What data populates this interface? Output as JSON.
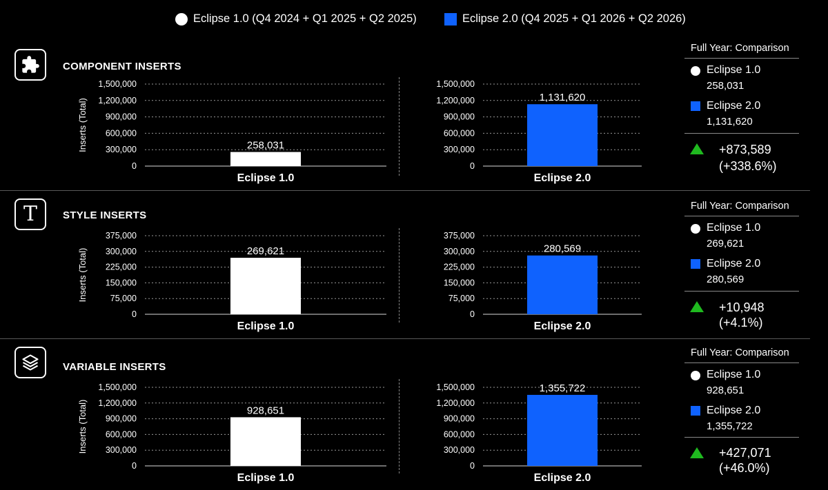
{
  "legend": [
    {
      "label": "Eclipse 1.0 (Q4 2024 + Q1 2025 + Q2 2025)",
      "color": "#ffffff",
      "marker": "circle"
    },
    {
      "label": "Eclipse 2.0 (Q4 2025 + Q1 2026 + Q2 2026)",
      "color": "#0f62fe",
      "marker": "square"
    }
  ],
  "colors": {
    "eclipse1": "#ffffff",
    "eclipse2": "#0f62fe",
    "increase": "#1fb91f"
  },
  "ylabel": "Inserts (Total)",
  "sections": [
    {
      "title": "COMPONENT INSERTS",
      "icon": "puzzle-icon",
      "comparison": {
        "title": "Full Year: Comparison",
        "e1_label": "Eclipse 1.0",
        "e1_value": "258,031",
        "e2_label": "Eclipse 2.0",
        "e2_value": "1,131,620",
        "delta": "+873,589",
        "pct": "(+338.6%)"
      }
    },
    {
      "title": "STYLE INSERTS",
      "icon": "text-t-icon",
      "icon_glyph": "T",
      "comparison": {
        "title": "Full Year: Comparison",
        "e1_label": "Eclipse 1.0",
        "e1_value": "269,621",
        "e2_label": "Eclipse 2.0",
        "e2_value": "280,569",
        "delta": "+10,948",
        "pct": "(+4.1%)"
      }
    },
    {
      "title": "VARIABLE INSERTS",
      "icon": "layers-icon",
      "comparison": {
        "title": "Full Year: Comparison",
        "e1_label": "Eclipse 1.0",
        "e1_value": "928,651",
        "e2_label": "Eclipse 2.0",
        "e2_value": "1,355,722",
        "delta": "+427,071",
        "pct": "(+46.0%)"
      }
    }
  ],
  "chart_data": [
    {
      "type": "bar",
      "categories": [
        "Eclipse 1.0"
      ],
      "values": [
        258031
      ],
      "value_labels": [
        "258,031"
      ],
      "ylabel": "Inserts (Total)",
      "ylim": [
        0,
        1500000
      ],
      "yticks": [
        0,
        300000,
        600000,
        900000,
        1200000,
        1500000
      ],
      "ytick_labels": [
        "0",
        "300,000",
        "600,000",
        "900,000",
        "1,200,000",
        "1,500,000"
      ],
      "color": "#ffffff",
      "grid": true
    },
    {
      "type": "bar",
      "categories": [
        "Eclipse 2.0"
      ],
      "values": [
        1131620
      ],
      "value_labels": [
        "1,131,620"
      ],
      "ylabel": "",
      "ylim": [
        0,
        1500000
      ],
      "yticks": [
        0,
        300000,
        600000,
        900000,
        1200000,
        1500000
      ],
      "ytick_labels": [
        "0",
        "300,000",
        "600,000",
        "900,000",
        "1,200,000",
        "1,500,000"
      ],
      "color": "#0f62fe",
      "grid": true
    },
    {
      "type": "bar",
      "categories": [
        "Eclipse 1.0"
      ],
      "values": [
        269621
      ],
      "value_labels": [
        "269,621"
      ],
      "ylabel": "Inserts (Total)",
      "ylim": [
        0,
        375000
      ],
      "yticks": [
        0,
        75000,
        150000,
        225000,
        300000,
        375000
      ],
      "ytick_labels": [
        "0",
        "75,000",
        "150,000",
        "225,000",
        "300,000",
        "375,000"
      ],
      "color": "#ffffff",
      "grid": true
    },
    {
      "type": "bar",
      "categories": [
        "Eclipse 2.0"
      ],
      "values": [
        280569
      ],
      "value_labels": [
        "280,569"
      ],
      "ylabel": "",
      "ylim": [
        0,
        375000
      ],
      "yticks": [
        0,
        75000,
        150000,
        225000,
        300000,
        375000
      ],
      "ytick_labels": [
        "0",
        "75,000",
        "150,000",
        "225,000",
        "300,000",
        "375,000"
      ],
      "color": "#0f62fe",
      "grid": true
    },
    {
      "type": "bar",
      "categories": [
        "Eclipse 1.0"
      ],
      "values": [
        928651
      ],
      "value_labels": [
        "928,651"
      ],
      "ylabel": "Inserts (Total)",
      "ylim": [
        0,
        1500000
      ],
      "yticks": [
        0,
        300000,
        600000,
        900000,
        1200000,
        1500000
      ],
      "ytick_labels": [
        "0",
        "300,000",
        "600,000",
        "900,000",
        "1,200,000",
        "1,500,000"
      ],
      "color": "#ffffff",
      "grid": true
    },
    {
      "type": "bar",
      "categories": [
        "Eclipse 2.0"
      ],
      "values": [
        1355722
      ],
      "value_labels": [
        "1,355,722"
      ],
      "ylabel": "",
      "ylim": [
        0,
        1500000
      ],
      "yticks": [
        0,
        300000,
        600000,
        900000,
        1200000,
        1500000
      ],
      "ytick_labels": [
        "0",
        "300,000",
        "600,000",
        "900,000",
        "1,200,000",
        "1,500,000"
      ],
      "color": "#0f62fe",
      "grid": true
    }
  ]
}
